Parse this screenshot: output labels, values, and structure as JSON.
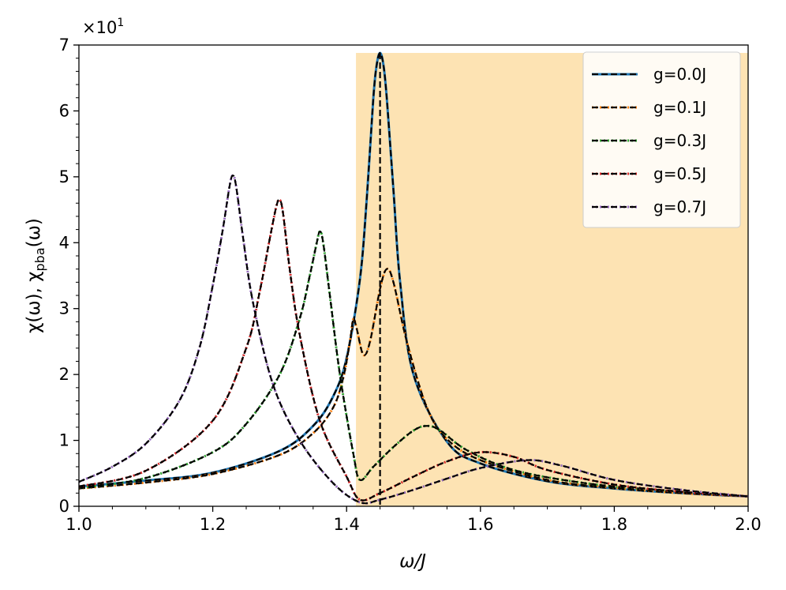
{
  "chart_data": {
    "type": "line",
    "xlabel": "ω/J",
    "ylabel": "χ(ω), χ_pba(ω)",
    "ylabel_main": "χ(ω), χ",
    "ylabel_sub": "pba",
    "ylabel_tail": "(ω)",
    "xlim": [
      1.0,
      2.0
    ],
    "ylim": [
      0,
      7
    ],
    "x_ticks": [
      1.0,
      1.2,
      1.4,
      1.6,
      1.8,
      2.0
    ],
    "x_tick_labels": [
      "1.0",
      "1.2",
      "1.4",
      "1.6",
      "1.8",
      "2.0"
    ],
    "y_ticks": [
      0,
      1,
      2,
      3,
      4,
      5,
      6,
      7
    ],
    "y_tick_labels": [
      "0",
      "1",
      "2",
      "3",
      "4",
      "5",
      "6",
      "7"
    ],
    "y_scale_base": "×10",
    "y_scale_exp": "1",
    "shaded_region": {
      "x_start": 1.414,
      "x_end": 2.0,
      "y_top": 6.88,
      "color": "#fde3b3"
    },
    "vline": {
      "x": 1.45,
      "color": "#000000"
    },
    "grid": false,
    "legend_position": "top-right",
    "series": [
      {
        "name": "g=0.0J",
        "color": "#1f77b4",
        "x": [
          1.0,
          1.1,
          1.2,
          1.3,
          1.35,
          1.38,
          1.4,
          1.42,
          1.43,
          1.44,
          1.445,
          1.45,
          1.455,
          1.46,
          1.47,
          1.48,
          1.5,
          1.55,
          1.6,
          1.7,
          1.8,
          1.9,
          2.0
        ],
        "y": [
          0.3,
          0.39,
          0.51,
          0.84,
          1.22,
          1.67,
          2.25,
          3.45,
          4.65,
          6.2,
          6.7,
          6.88,
          6.7,
          6.2,
          4.8,
          3.4,
          2.0,
          0.98,
          0.65,
          0.38,
          0.27,
          0.2,
          0.15
        ]
      },
      {
        "name": "g=0.1J",
        "color": "#ff7f0e",
        "x": [
          1.0,
          1.1,
          1.2,
          1.3,
          1.35,
          1.38,
          1.395,
          1.405,
          1.41,
          1.415,
          1.425,
          1.435,
          1.45,
          1.46,
          1.47,
          1.49,
          1.52,
          1.55,
          1.6,
          1.7,
          1.8,
          1.9,
          2.0
        ],
        "y": [
          0.27,
          0.36,
          0.49,
          0.78,
          1.11,
          1.5,
          1.95,
          2.5,
          2.84,
          2.7,
          2.3,
          2.5,
          3.3,
          3.6,
          3.4,
          2.5,
          1.5,
          1.02,
          0.7,
          0.4,
          0.28,
          0.2,
          0.15
        ]
      },
      {
        "name": "g=0.3J",
        "color": "#2ca02c",
        "x": [
          1.0,
          1.1,
          1.2,
          1.25,
          1.3,
          1.33,
          1.345,
          1.355,
          1.36,
          1.365,
          1.375,
          1.39,
          1.41,
          1.42,
          1.44,
          1.47,
          1.5,
          1.52,
          1.54,
          1.58,
          1.65,
          1.75,
          1.85,
          2.0
        ],
        "y": [
          0.28,
          0.43,
          0.82,
          1.25,
          2.0,
          2.85,
          3.5,
          3.98,
          4.17,
          4.0,
          3.2,
          2.0,
          0.8,
          0.4,
          0.6,
          0.9,
          1.15,
          1.22,
          1.15,
          0.85,
          0.55,
          0.36,
          0.26,
          0.15
        ]
      },
      {
        "name": "g=0.5J",
        "color": "#d62728",
        "x": [
          1.0,
          1.1,
          1.2,
          1.25,
          1.27,
          1.285,
          1.295,
          1.3,
          1.305,
          1.315,
          1.33,
          1.36,
          1.4,
          1.42,
          1.45,
          1.5,
          1.55,
          1.6,
          1.65,
          1.7,
          1.8,
          1.9,
          2.0
        ],
        "y": [
          0.3,
          0.54,
          1.3,
          2.4,
          3.25,
          4.05,
          4.55,
          4.65,
          4.45,
          3.6,
          2.6,
          1.3,
          0.45,
          0.1,
          0.2,
          0.45,
          0.68,
          0.82,
          0.75,
          0.55,
          0.33,
          0.22,
          0.15
        ]
      },
      {
        "name": "g=0.7J",
        "color": "#9467bd",
        "x": [
          1.0,
          1.05,
          1.1,
          1.15,
          1.18,
          1.2,
          1.215,
          1.225,
          1.23,
          1.235,
          1.245,
          1.26,
          1.29,
          1.33,
          1.38,
          1.42,
          1.45,
          1.5,
          1.55,
          1.6,
          1.67,
          1.72,
          1.8,
          1.9,
          2.0
        ],
        "y": [
          0.37,
          0.6,
          0.95,
          1.6,
          2.4,
          3.35,
          4.2,
          4.85,
          5.02,
          4.85,
          4.1,
          3.1,
          1.85,
          1.0,
          0.35,
          0.06,
          0.1,
          0.25,
          0.42,
          0.58,
          0.7,
          0.62,
          0.4,
          0.25,
          0.15
        ]
      }
    ]
  }
}
